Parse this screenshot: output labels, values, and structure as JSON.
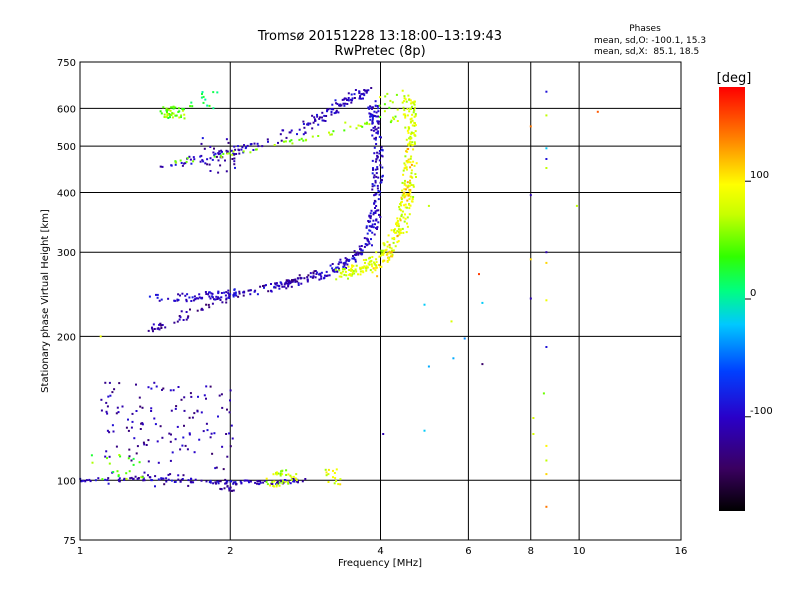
{
  "chart_data": {
    "type": "scatter",
    "title": "Tromsø 20151228 13:18:00–13:19:43",
    "subtitle": "RwPretec (8p)",
    "xlabel": "Frequency [MHz]",
    "ylabel": "Stationary phase Virtual Height [km]",
    "x_scale": "log2",
    "y_scale": "log",
    "xlim": [
      1,
      16
    ],
    "ylim": [
      75,
      750
    ],
    "x_ticks": [
      1,
      2,
      4,
      6,
      8,
      10,
      16
    ],
    "x_tick_labels": [
      "1",
      "2",
      "4",
      "6",
      "8",
      "10",
      "16"
    ],
    "y_ticks": [
      75,
      100,
      200,
      300,
      400,
      500,
      600,
      750
    ],
    "y_tick_labels": [
      "75",
      "100",
      "200",
      "300",
      "400",
      "500",
      "600",
      "750"
    ],
    "grid": true,
    "phases_box": {
      "heading": "Phases",
      "line_o": "mean, sd,O: -100.1, 15.3",
      "line_x": "mean, sd,X:  85.1, 18.5"
    },
    "colorbar": {
      "label": "[deg]",
      "range": [
        -180,
        180
      ],
      "ticks": [
        100,
        0,
        -100
      ],
      "tick_labels": [
        "100",
        "0",
        "-100"
      ]
    },
    "traces": [
      {
        "kind": "curve",
        "points": [
          [
            1.45,
            455
          ],
          [
            1.7,
            465
          ],
          [
            2.0,
            485
          ],
          [
            2.4,
            510
          ],
          [
            2.8,
            545
          ],
          [
            3.1,
            580
          ],
          [
            3.35,
            615
          ],
          [
            3.6,
            640
          ],
          [
            3.75,
            650
          ]
        ],
        "phase": -105,
        "spread": 0.045,
        "count": 170
      },
      {
        "kind": "curve",
        "points": [
          [
            1.55,
            465
          ],
          [
            2.0,
            480
          ],
          [
            2.5,
            505
          ],
          [
            3.0,
            525
          ],
          [
            3.5,
            545
          ],
          [
            3.85,
            560
          ]
        ],
        "phase": 60,
        "spread": 0.02,
        "count": 45
      },
      {
        "kind": "curve",
        "points": [
          [
            1.4,
            240
          ],
          [
            1.7,
            242
          ],
          [
            2.0,
            245
          ],
          [
            2.4,
            252
          ],
          [
            2.8,
            262
          ],
          [
            3.2,
            275
          ],
          [
            3.55,
            292
          ],
          [
            3.8,
            320
          ],
          [
            3.9,
            360
          ],
          [
            3.95,
            420
          ],
          [
            3.95,
            490
          ],
          [
            3.9,
            560
          ],
          [
            3.85,
            620
          ]
        ],
        "phase": -100,
        "spread": 0.04,
        "count": 360
      },
      {
        "kind": "curve",
        "points": [
          [
            1.35,
            202
          ],
          [
            1.6,
            220
          ],
          [
            2.0,
            240
          ],
          [
            2.5,
            255
          ],
          [
            3.0,
            270
          ]
        ],
        "phase": -120,
        "spread": 0.04,
        "count": 90
      },
      {
        "kind": "curve",
        "points": [
          [
            3.3,
            268
          ],
          [
            3.7,
            280
          ],
          [
            4.1,
            300
          ],
          [
            4.4,
            340
          ],
          [
            4.55,
            400
          ],
          [
            4.6,
            480
          ],
          [
            4.6,
            560
          ],
          [
            4.55,
            640
          ]
        ],
        "phase": 80,
        "spread": 0.05,
        "count": 300
      },
      {
        "kind": "curve",
        "points": [
          [
            3.9,
            270
          ],
          [
            4.2,
            300
          ],
          [
            4.45,
            360
          ],
          [
            4.55,
            440
          ],
          [
            4.6,
            520
          ]
        ],
        "phase": 110,
        "spread": 0.035,
        "count": 60
      },
      {
        "kind": "curve",
        "points": [
          [
            1.0,
            100
          ],
          [
            1.3,
            101
          ],
          [
            1.6,
            100
          ],
          [
            2.0,
            99
          ],
          [
            2.4,
            99
          ],
          [
            2.8,
            100
          ]
        ],
        "phase": -105,
        "spread": 0.02,
        "count": 110
      },
      {
        "kind": "cloud",
        "x": [
          1.1,
          2.05
        ],
        "y": [
          97,
          160
        ],
        "phase": -115,
        "count": 150
      },
      {
        "kind": "cloud",
        "x": [
          1.05,
          1.35
        ],
        "y": [
          100,
          113
        ],
        "phase": 45,
        "count": 20
      },
      {
        "kind": "cloud",
        "x": [
          2.35,
          2.75
        ],
        "y": [
          97,
          105
        ],
        "phase": 75,
        "count": 40
      },
      {
        "kind": "cloud",
        "x": [
          3.1,
          3.35
        ],
        "y": [
          98,
          106
        ],
        "phase": 85,
        "count": 16
      },
      {
        "kind": "cloud",
        "x": [
          1.88,
          2.07
        ],
        "y": [
          95,
          100
        ],
        "phase": -110,
        "count": 28
      },
      {
        "kind": "cloud",
        "x": [
          1.45,
          1.62
        ],
        "y": [
          570,
          605
        ],
        "phase": 50,
        "count": 45
      },
      {
        "kind": "cloud",
        "x": [
          1.65,
          1.9
        ],
        "y": [
          600,
          650
        ],
        "phase": 20,
        "count": 14
      },
      {
        "kind": "cloud",
        "x": [
          1.75,
          2.05
        ],
        "y": [
          440,
          520
        ],
        "phase": -110,
        "count": 24
      },
      {
        "kind": "cloud",
        "x": [
          3.95,
          4.35
        ],
        "y": [
          560,
          650
        ],
        "phase": 65,
        "count": 18
      }
    ],
    "points": [
      {
        "x": 3.4,
        "y": 560,
        "phase": 70
      },
      {
        "x": 5.0,
        "y": 375,
        "phase": 70
      },
      {
        "x": 4.9,
        "y": 233,
        "phase": -20
      },
      {
        "x": 5.55,
        "y": 215,
        "phase": 80
      },
      {
        "x": 6.3,
        "y": 270,
        "phase": 160
      },
      {
        "x": 6.4,
        "y": 235,
        "phase": -20
      },
      {
        "x": 5.6,
        "y": 180,
        "phase": -30
      },
      {
        "x": 5.9,
        "y": 198,
        "phase": -40
      },
      {
        "x": 5.0,
        "y": 173,
        "phase": -30
      },
      {
        "x": 6.4,
        "y": 175,
        "phase": -140
      },
      {
        "x": 4.05,
        "y": 125,
        "phase": -110
      },
      {
        "x": 4.9,
        "y": 127,
        "phase": -20
      },
      {
        "x": 8.0,
        "y": 550,
        "phase": 140
      },
      {
        "x": 8.6,
        "y": 650,
        "phase": -90
      },
      {
        "x": 8.6,
        "y": 580,
        "phase": 70
      },
      {
        "x": 8.6,
        "y": 495,
        "phase": -20
      },
      {
        "x": 8.6,
        "y": 470,
        "phase": -90
      },
      {
        "x": 8.6,
        "y": 450,
        "phase": 70
      },
      {
        "x": 8.0,
        "y": 395,
        "phase": -110
      },
      {
        "x": 8.6,
        "y": 300,
        "phase": -110
      },
      {
        "x": 8.0,
        "y": 290,
        "phase": 110
      },
      {
        "x": 8.6,
        "y": 285,
        "phase": 110
      },
      {
        "x": 8.0,
        "y": 240,
        "phase": -110
      },
      {
        "x": 8.6,
        "y": 238,
        "phase": 90
      },
      {
        "x": 8.6,
        "y": 190,
        "phase": -90
      },
      {
        "x": 8.1,
        "y": 135,
        "phase": 80
      },
      {
        "x": 8.1,
        "y": 125,
        "phase": 80
      },
      {
        "x": 8.6,
        "y": 118,
        "phase": 100
      },
      {
        "x": 8.6,
        "y": 110,
        "phase": 70
      },
      {
        "x": 8.6,
        "y": 103,
        "phase": 110
      },
      {
        "x": 8.6,
        "y": 88,
        "phase": 140
      },
      {
        "x": 8.5,
        "y": 152,
        "phase": 50
      },
      {
        "x": 9.9,
        "y": 375,
        "phase": 70
      },
      {
        "x": 10.9,
        "y": 590,
        "phase": 150
      },
      {
        "x": 1.1,
        "y": 200,
        "phase": 90
      }
    ]
  }
}
